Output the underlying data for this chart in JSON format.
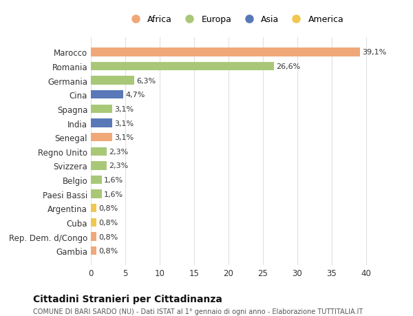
{
  "countries": [
    "Marocco",
    "Romania",
    "Germania",
    "Cina",
    "Spagna",
    "India",
    "Senegal",
    "Regno Unito",
    "Svizzera",
    "Belgio",
    "Paesi Bassi",
    "Argentina",
    "Cuba",
    "Rep. Dem. d/Congo",
    "Gambia"
  ],
  "values": [
    39.1,
    26.6,
    6.3,
    4.7,
    3.1,
    3.1,
    3.1,
    2.3,
    2.3,
    1.6,
    1.6,
    0.8,
    0.8,
    0.8,
    0.8
  ],
  "labels": [
    "39,1%",
    "26,6%",
    "6,3%",
    "4,7%",
    "3,1%",
    "3,1%",
    "3,1%",
    "2,3%",
    "2,3%",
    "1,6%",
    "1,6%",
    "0,8%",
    "0,8%",
    "0,8%",
    "0,8%"
  ],
  "continents": [
    "Africa",
    "Europa",
    "Europa",
    "Asia",
    "Europa",
    "Asia",
    "Africa",
    "Europa",
    "Europa",
    "Europa",
    "Europa",
    "America",
    "America",
    "Africa",
    "Africa"
  ],
  "colors": {
    "Africa": "#F0A878",
    "Europa": "#A8C878",
    "Asia": "#5878B8",
    "America": "#F0C850"
  },
  "legend_order": [
    "Africa",
    "Europa",
    "Asia",
    "America"
  ],
  "title": "Cittadini Stranieri per Cittadinanza",
  "subtitle": "COMUNE DI BARI SARDO (NU) - Dati ISTAT al 1° gennaio di ogni anno - Elaborazione TUTTITALIA.IT",
  "xlim": [
    0,
    42
  ],
  "xticks": [
    0,
    5,
    10,
    15,
    20,
    25,
    30,
    35,
    40
  ],
  "background_color": "#ffffff",
  "grid_color": "#e0e0e0"
}
